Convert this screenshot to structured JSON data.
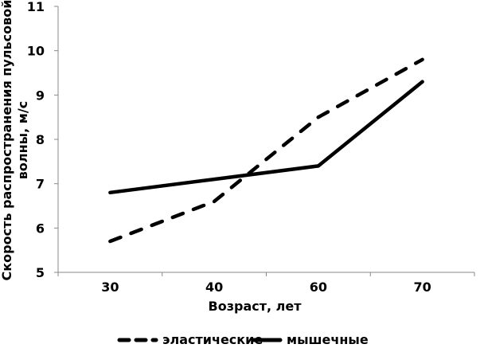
{
  "chart_data": {
    "type": "line",
    "title": "",
    "xlabel": "Возраст, лет",
    "ylabel": "Скорость распространения пульсовой волны, м/с",
    "ylabel_lines": [
      "Скорость распространения пульсовой",
      "волны, м/с"
    ],
    "categories": [
      "30",
      "40",
      "60",
      "70"
    ],
    "ylim": [
      5,
      11
    ],
    "yticks": [
      "5",
      "6",
      "7",
      "8",
      "9",
      "10",
      "11"
    ],
    "grid": false,
    "legend_position": "bottom",
    "series": [
      {
        "name": "эластические",
        "style": "dashed",
        "values": [
          5.7,
          6.6,
          8.5,
          9.8
        ]
      },
      {
        "name": "мышечные",
        "style": "solid",
        "values": [
          6.8,
          7.1,
          7.4,
          9.3
        ]
      }
    ]
  },
  "colors": {
    "line": "#000000",
    "axis": "#888888"
  }
}
